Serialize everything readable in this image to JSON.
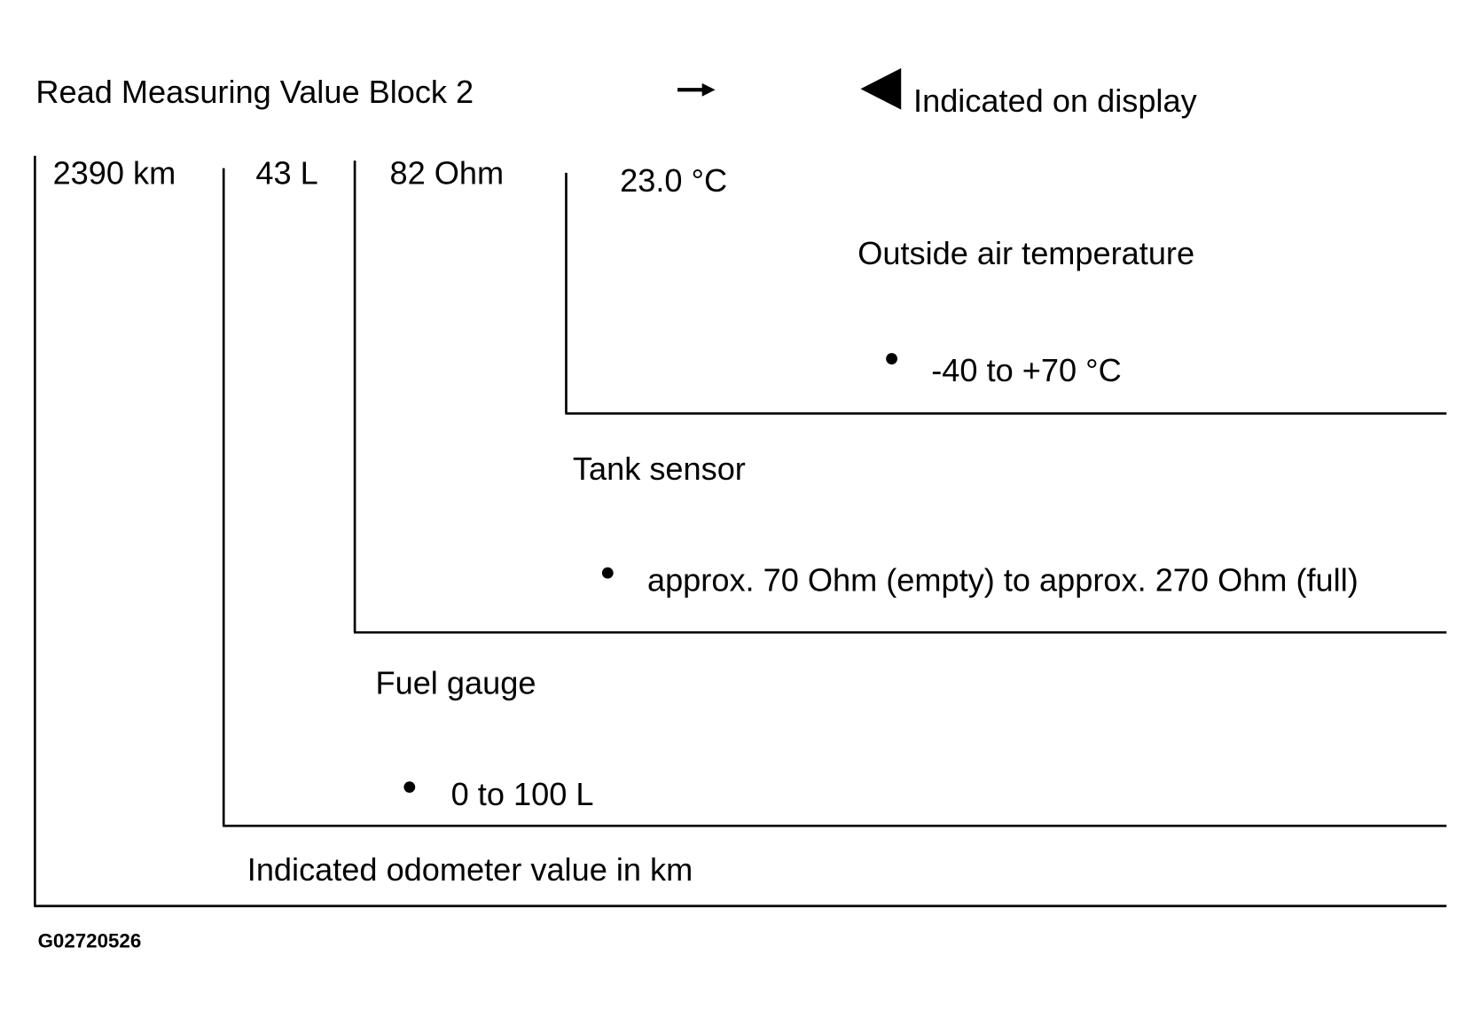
{
  "header": {
    "title": "Read Measuring Value Block 2",
    "display_note": "Indicated on display"
  },
  "display_fields": [
    "2390 km",
    "43 L",
    "82 Ohm",
    "23.0 °C"
  ],
  "descriptions": [
    {
      "label": "Outside air temperature",
      "range": "-40 to +70 °C"
    },
    {
      "label": "Tank sensor",
      "range": "approx. 70 Ohm (empty) to approx. 270 Ohm (full)"
    },
    {
      "label": "Fuel gauge",
      "range": "0 to 100 L"
    },
    {
      "label": "Indicated odometer value in km"
    }
  ],
  "footer": {
    "code": "G02720526"
  }
}
